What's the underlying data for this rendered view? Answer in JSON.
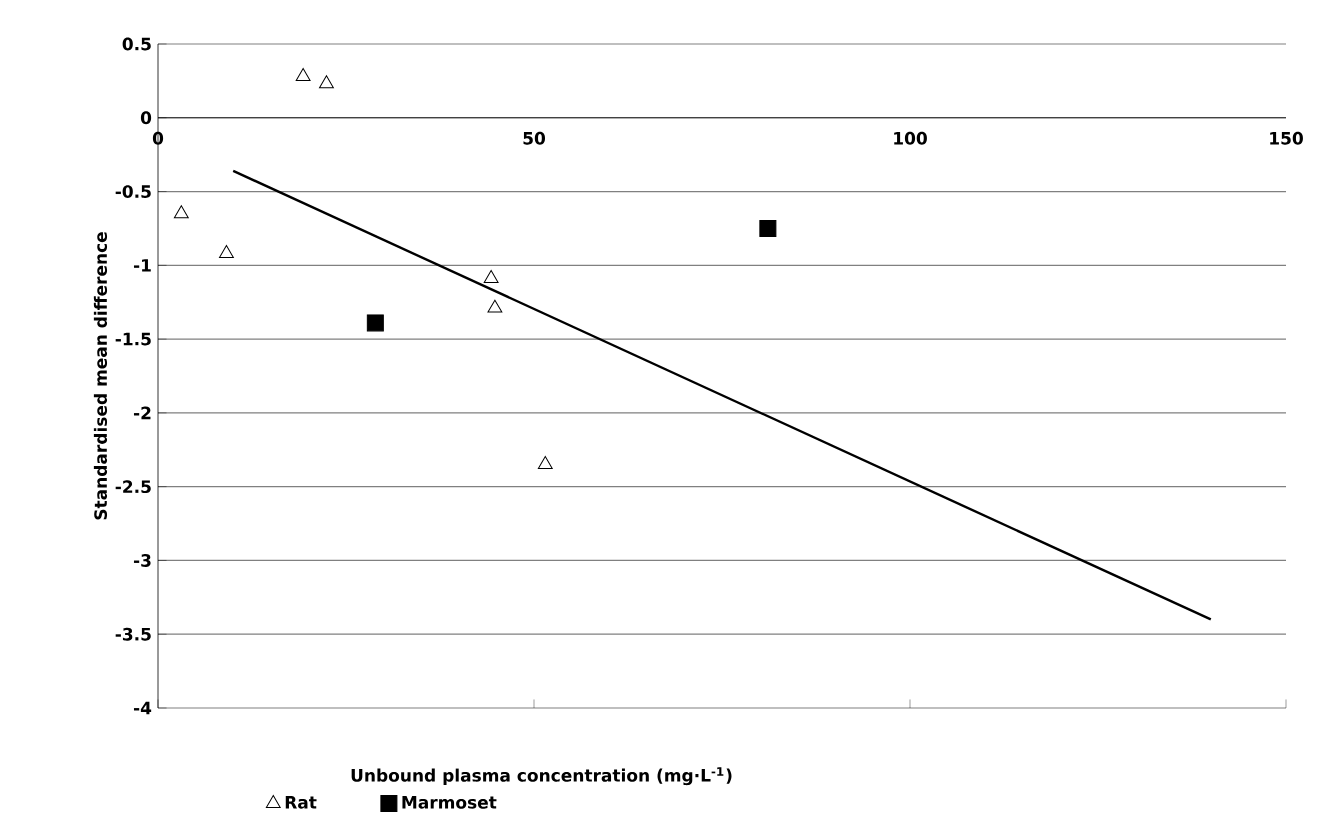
{
  "chart_data": {
    "type": "scatter",
    "xlabel": "Unbound plasma concentration (mg·L$^{-1}$)",
    "ylabel": "Standardised mean difference",
    "xlim": [
      0,
      150
    ],
    "ylim": [
      -4,
      0.5
    ],
    "xticks": [
      0,
      50,
      100,
      150
    ],
    "yticks": [
      -4,
      -3.5,
      -3,
      -2.5,
      -2,
      -1.5,
      -1,
      -0.5,
      0,
      0.5
    ],
    "grid": "y",
    "legend": "bottom",
    "series": [
      {
        "name": "Rat",
        "color": "#000000",
        "marker": "triangle",
        "x": [
          19.3,
          22.4,
          3.1,
          9.1,
          44.3,
          44.8,
          51.5
        ],
        "values": [
          0.28,
          0.23,
          -0.65,
          -0.92,
          -1.09,
          -1.29,
          -2.35
        ]
      },
      {
        "name": "Marmoset",
        "color": "#000000",
        "marker": "square",
        "x": [
          28.9,
          81.1
        ],
        "values": [
          -1.39,
          -0.75
        ]
      },
      {
        "type": "line",
        "color": "#000000",
        "x": [
          10,
          140
        ],
        "values": [
          -0.36,
          -3.4
        ]
      }
    ]
  }
}
